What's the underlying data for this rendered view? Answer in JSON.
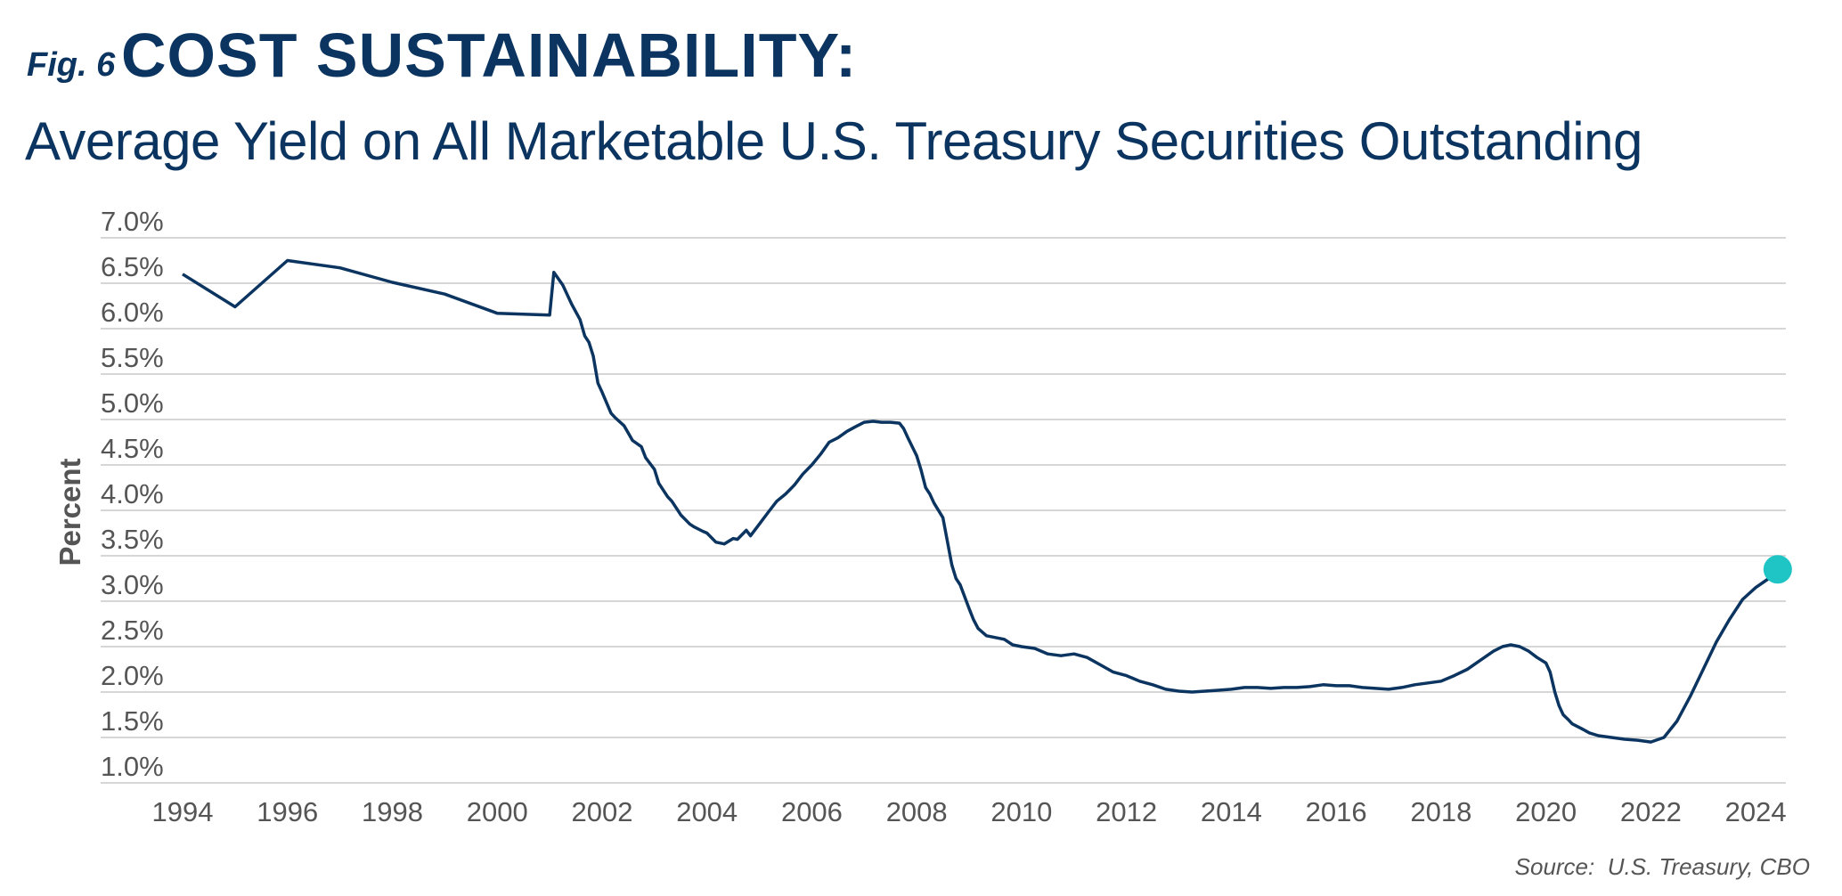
{
  "figure": {
    "label": "Fig. 6",
    "title": "COST SUSTAINABILITY:",
    "subtitle": "Average Yield on All Marketable U.S. Treasury Securities Outstanding",
    "source": "Source:  U.S. Treasury, CBO"
  },
  "colors": {
    "title": "#0b3560",
    "line": "#0b3560",
    "marker": "#1fc4c4",
    "grid": "#c9c9c9",
    "tick_text": "#555555"
  },
  "chart_data": {
    "type": "line",
    "title": "Average Yield on All Marketable U.S. Treasury Securities Outstanding",
    "xlabel": "",
    "ylabel": "Percent",
    "xlim": [
      1994,
      2024.6
    ],
    "ylim": [
      1.0,
      7.0
    ],
    "grid": "horizontal",
    "x_ticks": [
      "1994",
      "1996",
      "1998",
      "2000",
      "2002",
      "2004",
      "2006",
      "2008",
      "2010",
      "2012",
      "2014",
      "2016",
      "2018",
      "2020",
      "2022",
      "2024"
    ],
    "x_tick_values": [
      1994,
      1996,
      1998,
      2000,
      2002,
      2004,
      2006,
      2008,
      2010,
      2012,
      2014,
      2016,
      2018,
      2020,
      2022,
      2024
    ],
    "y_ticks": [
      "1.0%",
      "1.5%",
      "2.0%",
      "2.5%",
      "3.0%",
      "3.5%",
      "4.0%",
      "4.5%",
      "5.0%",
      "5.5%",
      "6.0%",
      "6.5%",
      "7.0%"
    ],
    "y_tick_values": [
      1.0,
      1.5,
      2.0,
      2.5,
      3.0,
      3.5,
      4.0,
      4.5,
      5.0,
      5.5,
      6.0,
      6.5,
      7.0
    ],
    "series": [
      {
        "x": [
          1994.0,
          1995.0,
          1996.0,
          1997.0,
          1998.0,
          1999.0,
          2000.0,
          2001.0,
          2001.08,
          2001.25,
          2001.42,
          2001.58,
          2001.67,
          2001.75,
          2001.83,
          2001.92,
          2002.0,
          2002.17,
          2002.25,
          2002.42,
          2002.5,
          2002.58,
          2002.75,
          2002.83,
          2003.0,
          2003.08,
          2003.25,
          2003.33,
          2003.5,
          2003.67,
          2003.75,
          2003.92,
          2004.0,
          2004.17,
          2004.33,
          2004.5,
          2004.58,
          2004.75,
          2004.83,
          2005.0,
          2005.17,
          2005.33,
          2005.5,
          2005.67,
          2005.83,
          2006.0,
          2006.17,
          2006.33,
          2006.5,
          2006.67,
          2006.83,
          2007.0,
          2007.17,
          2007.33,
          2007.5,
          2007.67,
          2007.75,
          2007.83,
          2008.0,
          2008.08,
          2008.17,
          2008.25,
          2008.33,
          2008.5,
          2008.67,
          2008.75,
          2008.83,
          2009.0,
          2009.08,
          2009.17,
          2009.33,
          2009.5,
          2009.67,
          2009.83,
          2010.0,
          2010.25,
          2010.5,
          2010.75,
          2011.0,
          2011.25,
          2011.5,
          2011.75,
          2012.0,
          2012.25,
          2012.5,
          2012.75,
          2013.0,
          2013.25,
          2013.5,
          2013.75,
          2014.0,
          2014.25,
          2014.5,
          2014.75,
          2015.0,
          2015.25,
          2015.5,
          2015.75,
          2016.0,
          2016.25,
          2016.5,
          2016.75,
          2017.0,
          2017.25,
          2017.5,
          2017.75,
          2018.0,
          2018.25,
          2018.5,
          2018.75,
          2019.0,
          2019.17,
          2019.33,
          2019.5,
          2019.67,
          2019.83,
          2020.0,
          2020.08,
          2020.17,
          2020.25,
          2020.33,
          2020.42,
          2020.5,
          2020.67,
          2020.83,
          2021.0,
          2021.25,
          2021.5,
          2021.75,
          2022.0,
          2022.25,
          2022.5,
          2022.75,
          2023.0,
          2023.25,
          2023.5,
          2023.75,
          2024.0,
          2024.25
        ],
        "y": [
          6.6,
          6.24,
          6.75,
          6.67,
          6.51,
          6.38,
          6.17,
          6.15,
          6.62,
          6.48,
          6.27,
          6.1,
          5.92,
          5.85,
          5.7,
          5.4,
          5.3,
          5.07,
          5.02,
          4.93,
          4.85,
          4.77,
          4.7,
          4.58,
          4.45,
          4.3,
          4.15,
          4.1,
          3.95,
          3.85,
          3.82,
          3.77,
          3.75,
          3.65,
          3.63,
          3.69,
          3.68,
          3.78,
          3.72,
          3.85,
          3.98,
          4.1,
          4.18,
          4.28,
          4.4,
          4.5,
          4.62,
          4.75,
          4.8,
          4.87,
          4.92,
          4.97,
          4.98,
          4.97,
          4.97,
          4.96,
          4.9,
          4.8,
          4.6,
          4.45,
          4.25,
          4.18,
          4.08,
          3.92,
          3.4,
          3.25,
          3.18,
          2.92,
          2.8,
          2.7,
          2.62,
          2.6,
          2.58,
          2.52,
          2.5,
          2.48,
          2.42,
          2.4,
          2.42,
          2.38,
          2.3,
          2.22,
          2.18,
          2.12,
          2.08,
          2.03,
          2.01,
          2.0,
          2.01,
          2.02,
          2.03,
          2.05,
          2.05,
          2.04,
          2.05,
          2.05,
          2.06,
          2.08,
          2.07,
          2.07,
          2.05,
          2.04,
          2.03,
          2.05,
          2.08,
          2.1,
          2.12,
          2.18,
          2.25,
          2.35,
          2.45,
          2.5,
          2.52,
          2.5,
          2.45,
          2.38,
          2.32,
          2.22,
          2.0,
          1.85,
          1.75,
          1.7,
          1.65,
          1.6,
          1.55,
          1.52,
          1.5,
          1.48,
          1.47,
          1.45,
          1.5,
          1.68,
          1.95,
          2.25,
          2.55,
          2.8,
          3.02,
          3.15,
          3.25
        ]
      }
    ],
    "end_marker": {
      "x": 2024.42,
      "y": 3.35
    }
  }
}
